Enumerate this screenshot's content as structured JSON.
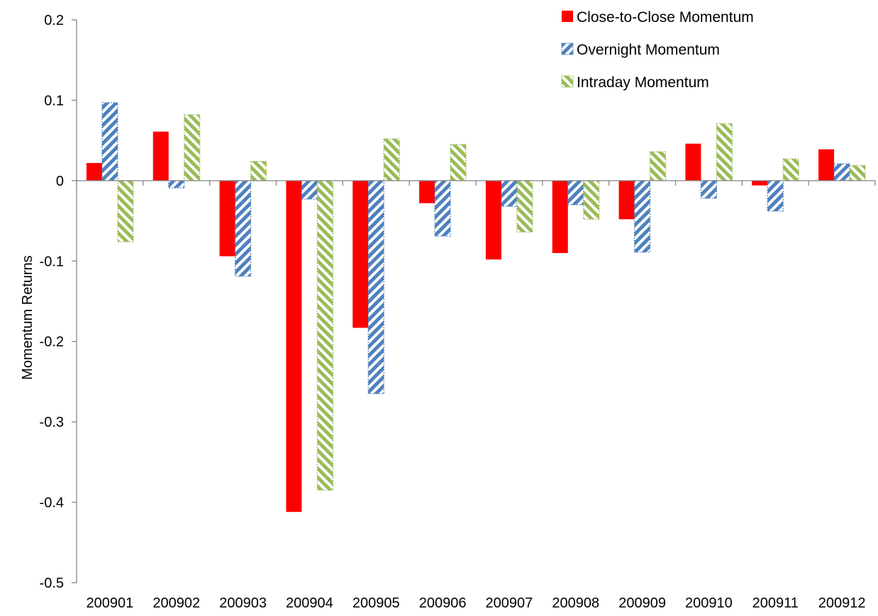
{
  "chart_data": {
    "type": "bar",
    "title": "",
    "xlabel": "",
    "ylabel": "Momentum Returns",
    "ylim": [
      -0.5,
      0.2
    ],
    "yticks": [
      0.2,
      0.1,
      0,
      -0.1,
      -0.2,
      -0.3,
      -0.4,
      -0.5
    ],
    "ytick_labels": [
      "0.2",
      "0.1",
      "0",
      "-0.1",
      "-0.2",
      "-0.3",
      "-0.4",
      "-0.5"
    ],
    "grid": false,
    "legend_position": "top-right",
    "categories": [
      "200901",
      "200902",
      "200903",
      "200904",
      "200905",
      "200906",
      "200907",
      "200908",
      "200909",
      "200910",
      "200911",
      "200912"
    ],
    "series": [
      {
        "name": "Close-to-Close Momentum",
        "pattern": "solid",
        "color": "#ff0000",
        "values": [
          0.022,
          0.061,
          -0.094,
          -0.412,
          -0.183,
          -0.028,
          -0.098,
          -0.09,
          -0.048,
          0.046,
          -0.006,
          0.039
        ]
      },
      {
        "name": "Overnight Momentum",
        "pattern": "dark-downward-diagonal-hatch",
        "color": "#4f81bd",
        "values": [
          0.097,
          -0.009,
          -0.119,
          -0.023,
          -0.265,
          -0.069,
          -0.032,
          -0.03,
          -0.089,
          -0.022,
          -0.038,
          0.021
        ]
      },
      {
        "name": "Intraday Momentum",
        "pattern": "dark-upward-diagonal-hatch",
        "color": "#9bbb59",
        "values": [
          -0.076,
          0.082,
          0.024,
          -0.385,
          0.052,
          0.045,
          -0.064,
          -0.048,
          0.036,
          0.071,
          0.027,
          0.019
        ]
      }
    ]
  }
}
